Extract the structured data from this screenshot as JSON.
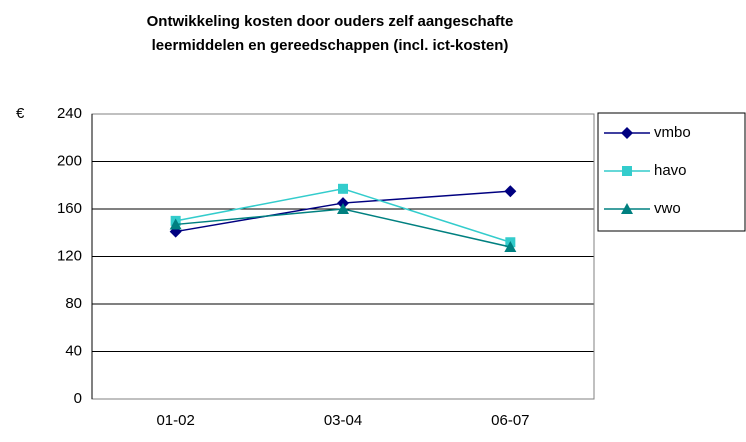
{
  "chart_data": {
    "type": "line",
    "title": [
      "Ontwikkeling kosten door ouders zelf aangeschafte",
      "leermiddelen en gereedschappen (incl. ict-kosten)"
    ],
    "y_label": "€",
    "categories": [
      "01-02",
      "03-04",
      "06-07"
    ],
    "series": [
      {
        "name": "vmbo",
        "color": "#000080",
        "marker": "diamond",
        "values": [
          141,
          165,
          175
        ]
      },
      {
        "name": "havo",
        "color": "#33CCCC",
        "marker": "square",
        "values": [
          150,
          177,
          132
        ]
      },
      {
        "name": "vwo",
        "color": "#008080",
        "marker": "triangle",
        "values": [
          147,
          160,
          128
        ]
      }
    ],
    "ylim": [
      0,
      240
    ],
    "yticks": [
      0,
      40,
      80,
      120,
      160,
      200,
      240
    ],
    "grid": true,
    "legend": "right"
  }
}
